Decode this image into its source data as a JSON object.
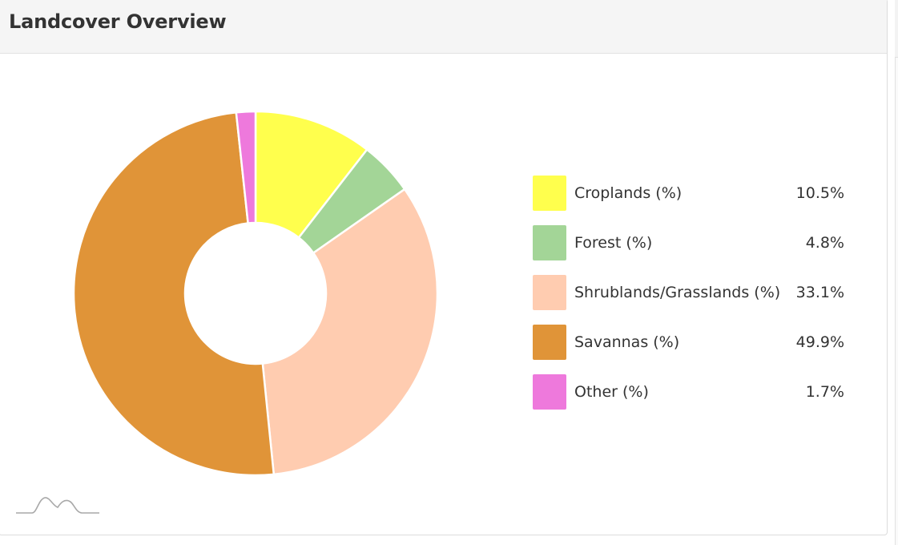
{
  "panel": {
    "title": "Landcover Overview"
  },
  "chart_data": {
    "type": "pie",
    "donut": true,
    "legend_position": "right",
    "labels": [
      "Croplands (%)",
      "Forest (%)",
      "Shrublands/Grasslands (%)",
      "Savannas (%)",
      "Other (%)"
    ],
    "values": [
      10.5,
      4.8,
      33.1,
      49.9,
      1.7
    ],
    "value_labels": [
      "10.5%",
      "4.8%",
      "33.1%",
      "49.9%",
      "1.7%"
    ],
    "colors": [
      "#ffff4d",
      "#a3d597",
      "#ffccb0",
      "#e09438",
      "#ee79dc"
    ]
  },
  "icons": {
    "watermark": "mountain-logo-icon"
  }
}
